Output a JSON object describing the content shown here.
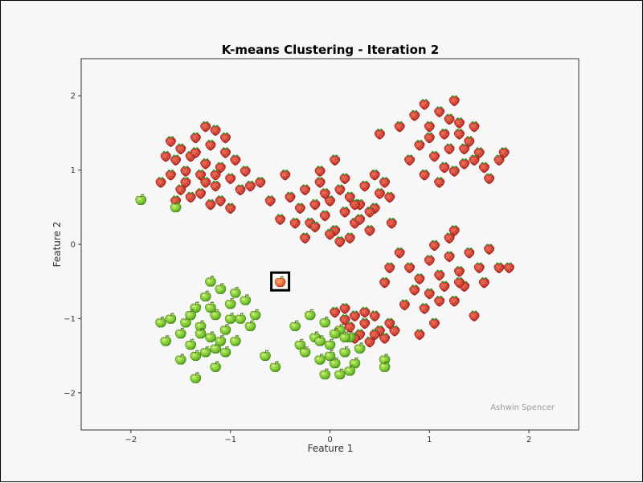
{
  "chart_data": {
    "type": "scatter",
    "title": "K-means Clustering - Iteration 2",
    "xlabel": "Feature 1",
    "ylabel": "Feature 2",
    "xlim": [
      -2.5,
      2.5
    ],
    "ylim": [
      -2.5,
      2.5
    ],
    "xticks": [
      -2,
      -1,
      0,
      1,
      2
    ],
    "yticks": [
      -2,
      -1,
      0,
      1,
      2
    ],
    "xtick_labels": [
      "−2",
      "−1",
      "0",
      "1",
      "2"
    ],
    "ytick_labels": [
      "−2",
      "−1",
      "0",
      "1",
      "2"
    ],
    "grid": false,
    "watermark": "Ashwin Spencer",
    "marker_colors": {
      "strawberry": "#c6322b",
      "apple": "#6fbf2a",
      "centroid": "#e8663a"
    },
    "series": [
      {
        "marker": "strawberry-icon",
        "points": [
          [
            -1.6,
            1.4
          ],
          [
            -1.55,
            1.15
          ],
          [
            -1.5,
            1.3
          ],
          [
            -1.45,
            1.0
          ],
          [
            -1.4,
            1.2
          ],
          [
            -1.35,
            1.45
          ],
          [
            -1.3,
            0.95
          ],
          [
            -1.25,
            1.1
          ],
          [
            -1.2,
            1.35
          ],
          [
            -1.15,
            0.8
          ],
          [
            -1.1,
            1.05
          ],
          [
            -1.05,
            1.25
          ],
          [
            -1.0,
            0.9
          ],
          [
            -0.95,
            1.15
          ],
          [
            -0.9,
            0.75
          ],
          [
            -1.7,
            0.85
          ],
          [
            -1.6,
            0.95
          ],
          [
            -1.5,
            0.75
          ],
          [
            -1.4,
            0.65
          ],
          [
            -1.3,
            0.7
          ],
          [
            -1.2,
            0.55
          ],
          [
            -1.1,
            0.6
          ],
          [
            -1.0,
            0.5
          ],
          [
            -0.85,
            1.0
          ],
          [
            -0.8,
            0.8
          ],
          [
            -0.7,
            0.85
          ],
          [
            -0.6,
            0.6
          ],
          [
            -1.25,
            1.6
          ],
          [
            -1.15,
            1.55
          ],
          [
            -1.35,
            1.25
          ],
          [
            -1.45,
            0.85
          ],
          [
            -1.05,
            1.45
          ],
          [
            -1.25,
            0.85
          ],
          [
            -1.15,
            0.95
          ],
          [
            -1.55,
            0.6
          ],
          [
            -1.65,
            1.2
          ],
          [
            -0.45,
            0.95
          ],
          [
            -0.4,
            0.65
          ],
          [
            -0.3,
            0.5
          ],
          [
            -0.25,
            0.75
          ],
          [
            -0.2,
            0.3
          ],
          [
            -0.15,
            0.55
          ],
          [
            -0.1,
            0.85
          ],
          [
            -0.05,
            0.4
          ],
          [
            0.0,
            0.6
          ],
          [
            0.05,
            0.2
          ],
          [
            0.1,
            0.75
          ],
          [
            0.15,
            0.45
          ],
          [
            0.2,
            0.65
          ],
          [
            0.25,
            0.3
          ],
          [
            0.3,
            0.55
          ],
          [
            0.35,
            0.8
          ],
          [
            0.4,
            0.2
          ],
          [
            0.45,
            0.5
          ],
          [
            0.5,
            0.7
          ],
          [
            0.55,
            0.85
          ],
          [
            -0.35,
            0.3
          ],
          [
            -0.25,
            0.1
          ],
          [
            -0.15,
            0.25
          ],
          [
            0.0,
            0.15
          ],
          [
            0.1,
            0.05
          ],
          [
            0.2,
            0.1
          ],
          [
            0.3,
            0.35
          ],
          [
            0.6,
            0.65
          ],
          [
            0.62,
            0.3
          ],
          [
            0.05,
            1.15
          ],
          [
            -0.1,
            1.0
          ],
          [
            0.45,
            0.95
          ],
          [
            -0.5,
            0.35
          ],
          [
            0.15,
            0.9
          ],
          [
            0.25,
            0.55
          ],
          [
            0.4,
            0.45
          ],
          [
            -0.05,
            0.7
          ],
          [
            0.95,
            1.9
          ],
          [
            1.1,
            1.8
          ],
          [
            1.25,
            1.95
          ],
          [
            1.0,
            1.6
          ],
          [
            1.15,
            1.5
          ],
          [
            1.3,
            1.65
          ],
          [
            1.4,
            1.4
          ],
          [
            1.2,
            1.3
          ],
          [
            1.05,
            1.2
          ],
          [
            0.9,
            1.35
          ],
          [
            1.35,
            1.1
          ],
          [
            1.5,
            1.25
          ],
          [
            1.55,
            1.05
          ],
          [
            1.6,
            0.9
          ],
          [
            1.25,
            1.0
          ],
          [
            1.1,
            0.85
          ],
          [
            0.95,
            0.95
          ],
          [
            0.85,
            1.75
          ],
          [
            0.7,
            1.6
          ],
          [
            0.5,
            1.5
          ],
          [
            1.7,
            1.15
          ],
          [
            1.45,
            1.6
          ],
          [
            1.0,
            1.45
          ],
          [
            1.3,
            1.5
          ],
          [
            1.15,
            1.05
          ],
          [
            0.8,
            1.15
          ],
          [
            1.75,
            1.25
          ],
          [
            1.2,
            1.7
          ],
          [
            1.35,
            1.3
          ],
          [
            1.45,
            1.15
          ],
          [
            0.6,
            -0.3
          ],
          [
            0.7,
            -0.1
          ],
          [
            0.8,
            -0.3
          ],
          [
            0.9,
            -0.45
          ],
          [
            1.0,
            -0.2
          ],
          [
            1.1,
            -0.4
          ],
          [
            1.2,
            -0.15
          ],
          [
            1.3,
            -0.35
          ],
          [
            1.4,
            -0.1
          ],
          [
            1.5,
            -0.3
          ],
          [
            0.85,
            -0.6
          ],
          [
            1.0,
            -0.65
          ],
          [
            1.15,
            -0.55
          ],
          [
            1.25,
            -0.75
          ],
          [
            0.95,
            -0.85
          ],
          [
            1.05,
            0.0
          ],
          [
            1.2,
            0.1
          ],
          [
            1.35,
            -0.55
          ],
          [
            1.55,
            -0.5
          ],
          [
            0.75,
            -0.8
          ],
          [
            1.45,
            -0.95
          ],
          [
            1.6,
            -0.05
          ],
          [
            1.8,
            -0.3
          ],
          [
            1.05,
            -1.05
          ],
          [
            1.25,
            0.2
          ],
          [
            0.9,
            -1.2
          ],
          [
            0.55,
            -0.5
          ],
          [
            1.7,
            -0.3
          ],
          [
            1.1,
            -0.75
          ],
          [
            1.3,
            -0.5
          ],
          [
            0.05,
            -0.9
          ],
          [
            0.15,
            -1.0
          ],
          [
            0.25,
            -0.95
          ],
          [
            0.35,
            -1.05
          ],
          [
            0.45,
            -0.95
          ],
          [
            0.5,
            -1.15
          ],
          [
            0.55,
            -1.25
          ],
          [
            0.65,
            -1.15
          ],
          [
            0.4,
            -1.3
          ],
          [
            0.3,
            -1.2
          ],
          [
            0.2,
            -1.1
          ],
          [
            0.6,
            -1.05
          ],
          [
            0.35,
            -0.9
          ],
          [
            0.15,
            -0.85
          ],
          [
            0.45,
            -1.2
          ],
          [
            0.25,
            -1.25
          ]
        ]
      },
      {
        "marker": "apple-icon",
        "points": [
          [
            -1.9,
            0.6
          ],
          [
            -1.55,
            0.5
          ],
          [
            -1.6,
            -1.0
          ],
          [
            -1.5,
            -1.2
          ],
          [
            -1.45,
            -1.05
          ],
          [
            -1.4,
            -1.35
          ],
          [
            -1.35,
            -0.85
          ],
          [
            -1.3,
            -1.1
          ],
          [
            -1.25,
            -0.7
          ],
          [
            -1.2,
            -1.25
          ],
          [
            -1.15,
            -0.95
          ],
          [
            -1.1,
            -0.6
          ],
          [
            -1.05,
            -1.15
          ],
          [
            -1.0,
            -0.8
          ],
          [
            -0.95,
            -1.3
          ],
          [
            -0.9,
            -1.0
          ],
          [
            -0.85,
            -0.75
          ],
          [
            -1.35,
            -1.5
          ],
          [
            -1.25,
            -1.45
          ],
          [
            -1.15,
            -1.4
          ],
          [
            -1.05,
            -1.45
          ],
          [
            -1.5,
            -1.55
          ],
          [
            -1.2,
            -0.5
          ],
          [
            -1.15,
            -1.65
          ],
          [
            -1.35,
            -1.8
          ],
          [
            -1.65,
            -1.3
          ],
          [
            -1.7,
            -1.05
          ],
          [
            -1.3,
            -1.2
          ],
          [
            -1.1,
            -1.3
          ],
          [
            -1.4,
            -0.95
          ],
          [
            -1.2,
            -0.85
          ],
          [
            -1.0,
            -1.0
          ],
          [
            -0.8,
            -1.1
          ],
          [
            -0.75,
            -0.95
          ],
          [
            -0.95,
            -0.65
          ],
          [
            -0.65,
            -1.5
          ],
          [
            -0.55,
            -1.65
          ],
          [
            -0.35,
            -1.1
          ],
          [
            -0.3,
            -1.35
          ],
          [
            -0.25,
            -1.45
          ],
          [
            -0.2,
            -0.95
          ],
          [
            -0.15,
            -1.25
          ],
          [
            -0.1,
            -1.55
          ],
          [
            -0.05,
            -1.05
          ],
          [
            0.0,
            -1.35
          ],
          [
            0.05,
            -1.6
          ],
          [
            0.1,
            -1.15
          ],
          [
            0.15,
            -1.45
          ],
          [
            0.2,
            -1.25
          ],
          [
            0.25,
            -1.6
          ],
          [
            0.3,
            -1.4
          ],
          [
            -0.05,
            -1.75
          ],
          [
            0.1,
            -1.75
          ],
          [
            0.2,
            -1.7
          ],
          [
            0.55,
            -1.55
          ],
          [
            0.55,
            -1.65
          ],
          [
            -0.1,
            -1.3
          ],
          [
            0.0,
            -1.5
          ],
          [
            0.15,
            -1.25
          ],
          [
            0.05,
            -1.2
          ]
        ]
      }
    ],
    "centroid": {
      "marker": "apple-icon",
      "point": [
        -0.5,
        -0.5
      ]
    }
  }
}
